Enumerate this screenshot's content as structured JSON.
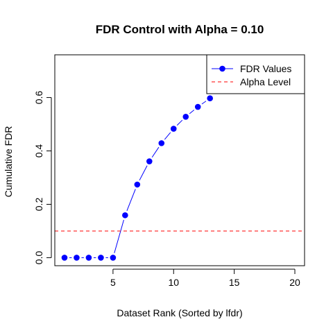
{
  "chart_data": {
    "type": "line",
    "title": "FDR Control with Alpha = 0.10",
    "xlabel": "Dataset Rank (Sorted by lfdr)",
    "ylabel": "Cumulative FDR",
    "xlim": [
      0.2,
      20.8
    ],
    "ylim": [
      -0.03,
      0.76
    ],
    "x_ticks": [
      5,
      10,
      15,
      20
    ],
    "y_ticks": [
      0.0,
      0.2,
      0.4,
      0.6
    ],
    "x_tick_labels": [
      "5",
      "10",
      "15",
      "20"
    ],
    "y_tick_labels": [
      "0.0",
      "0.2",
      "0.4",
      "0.6"
    ],
    "grid": false,
    "legend_position": "top-right",
    "series": [
      {
        "name": "FDR Values",
        "kind": "line-points",
        "color": "#0000ff",
        "x": [
          1,
          2,
          3,
          4,
          5,
          6,
          7,
          8,
          9,
          10,
          11,
          12,
          13
        ],
        "values": [
          0.0,
          0.0,
          0.0,
          0.0,
          0.0,
          0.159,
          0.274,
          0.361,
          0.429,
          0.483,
          0.528,
          0.565,
          0.597
        ]
      },
      {
        "name": "Alpha Level",
        "kind": "hline",
        "color": "#ff0000",
        "value": 0.1
      }
    ]
  }
}
